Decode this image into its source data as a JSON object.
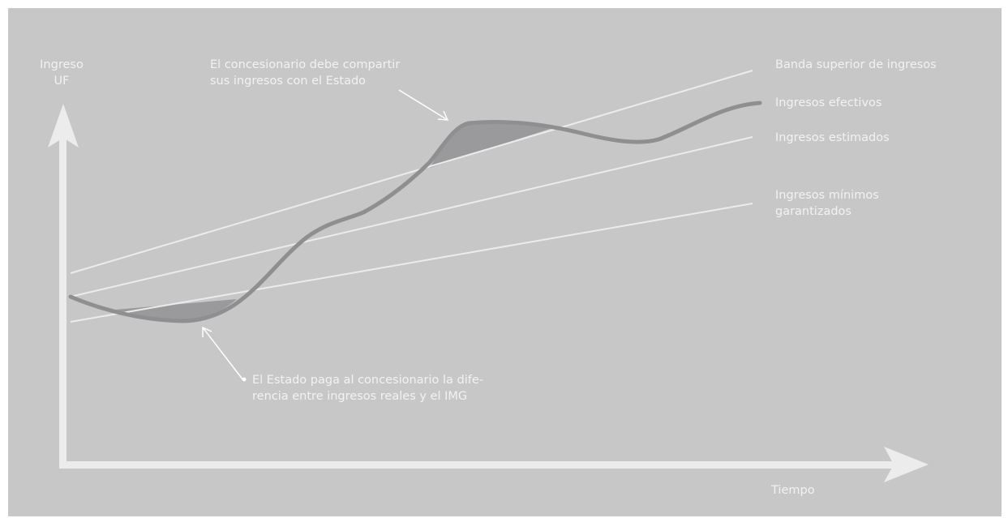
{
  "axes": {
    "y_label": "Ingreso\nUF",
    "x_label": "Tiempo"
  },
  "series_labels": {
    "upper_band": "Banda superior de ingresos",
    "actual": "Ingresos efectivos",
    "estimated": "Ingresos estimados",
    "minimum": "Ingresos mínimos\ngarantizados"
  },
  "annotations": {
    "share": "El concesionario debe compartir\nsus ingresos con el Estado",
    "pay": "El Estado paga al concesionario la dife-\nrencia entre ingresos reales y el IMG"
  },
  "colors": {
    "background": "#c7c7c8",
    "line_light": "#ececec",
    "actual_line": "#8f8f91",
    "shaded_area": "#9a9a9c",
    "text": "#f2f2f2"
  }
}
